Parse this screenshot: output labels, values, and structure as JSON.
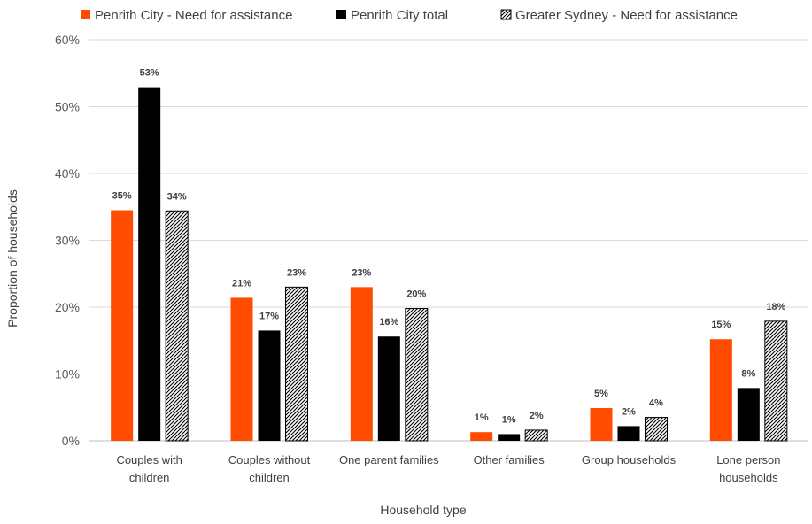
{
  "chart_data": {
    "type": "bar",
    "xlabel": "Household type",
    "ylabel": "Proportion of households",
    "ylim": [
      0,
      60
    ],
    "yticks": [
      0,
      10,
      20,
      30,
      40,
      50,
      60
    ],
    "ytick_labels": [
      "0%",
      "10%",
      "20%",
      "30%",
      "40%",
      "50%",
      "60%"
    ],
    "categories": [
      [
        "Couples with",
        "children"
      ],
      [
        "Couples without",
        "children"
      ],
      [
        "One parent families"
      ],
      [
        "Other families"
      ],
      [
        "Group households"
      ],
      [
        "Lone person",
        "households"
      ]
    ],
    "legend_position": "top",
    "grid": true,
    "series": [
      {
        "name": "Penrith City - Need for assistance",
        "color": "#ff4c00",
        "pattern": "solid",
        "values": [
          34.5,
          21.4,
          23.0,
          1.3,
          4.9,
          15.2
        ],
        "labels": [
          "35%",
          "21%",
          "23%",
          "1%",
          "5%",
          "15%"
        ]
      },
      {
        "name": "Penrith City total",
        "color": "#000000",
        "pattern": "solid",
        "values": [
          52.9,
          16.5,
          15.6,
          1.0,
          2.2,
          7.9
        ],
        "labels": [
          "53%",
          "17%",
          "16%",
          "1%",
          "2%",
          "8%"
        ]
      },
      {
        "name": "Greater Sydney - Need for assistance",
        "color": "#000000",
        "pattern": "hatch",
        "values": [
          34.4,
          23.0,
          19.8,
          1.6,
          3.5,
          17.9
        ],
        "labels": [
          "34%",
          "23%",
          "20%",
          "2%",
          "4%",
          "18%"
        ]
      }
    ]
  }
}
